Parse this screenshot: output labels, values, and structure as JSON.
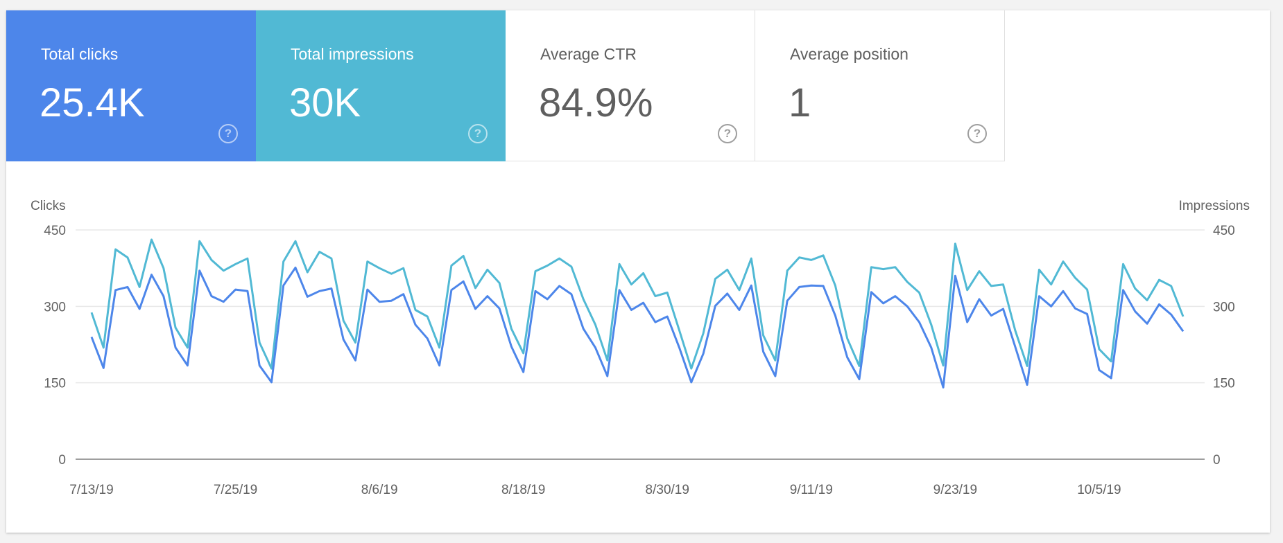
{
  "metrics": [
    {
      "label": "Total clicks",
      "value": "25.4K",
      "selected": true,
      "color": "#4d86ea"
    },
    {
      "label": "Total impressions",
      "value": "30K",
      "selected": true,
      "color": "#51b9d4"
    },
    {
      "label": "Average CTR",
      "value": "84.9%",
      "selected": false
    },
    {
      "label": "Average position",
      "value": "1",
      "selected": false
    }
  ],
  "help_icon": "question-circle-icon",
  "chart_data": {
    "type": "line",
    "left_axis_label": "Clicks",
    "right_axis_label": "Impressions",
    "ylim": [
      0,
      450
    ],
    "yticks": [
      "0",
      "150",
      "300",
      "450"
    ],
    "grid": true,
    "xtick_labels": [
      "7/13/19",
      "7/25/19",
      "8/6/19",
      "8/18/19",
      "8/30/19",
      "9/11/19",
      "9/23/19",
      "10/5/19"
    ],
    "x": [
      "7/13/19",
      "7/14/19",
      "7/15/19",
      "7/16/19",
      "7/17/19",
      "7/18/19",
      "7/19/19",
      "7/20/19",
      "7/21/19",
      "7/22/19",
      "7/23/19",
      "7/24/19",
      "7/25/19",
      "7/26/19",
      "7/27/19",
      "7/28/19",
      "7/29/19",
      "7/30/19",
      "7/31/19",
      "8/1/19",
      "8/2/19",
      "8/3/19",
      "8/4/19",
      "8/5/19",
      "8/6/19",
      "8/7/19",
      "8/8/19",
      "8/9/19",
      "8/10/19",
      "8/11/19",
      "8/12/19",
      "8/13/19",
      "8/14/19",
      "8/15/19",
      "8/16/19",
      "8/17/19",
      "8/18/19",
      "8/19/19",
      "8/20/19",
      "8/21/19",
      "8/22/19",
      "8/23/19",
      "8/24/19",
      "8/25/19",
      "8/26/19",
      "8/27/19",
      "8/28/19",
      "8/29/19",
      "8/30/19",
      "8/31/19",
      "9/1/19",
      "9/2/19",
      "9/3/19",
      "9/4/19",
      "9/5/19",
      "9/6/19",
      "9/7/19",
      "9/8/19",
      "9/9/19",
      "9/10/19",
      "9/11/19",
      "9/12/19",
      "9/13/19",
      "9/14/19",
      "9/15/19",
      "9/16/19",
      "9/17/19",
      "9/18/19",
      "9/19/19",
      "9/20/19",
      "9/21/19",
      "9/22/19",
      "9/23/19",
      "9/24/19",
      "9/25/19",
      "9/26/19",
      "9/27/19",
      "9/28/19",
      "9/29/19",
      "9/30/19",
      "10/1/19",
      "10/2/19",
      "10/3/19",
      "10/4/19",
      "10/5/19",
      "10/6/19",
      "10/7/19",
      "10/8/19",
      "10/9/19",
      "10/10/19",
      "10/11/19",
      "10/12/19"
    ],
    "series": [
      {
        "name": "Clicks",
        "color": "#4d86ea",
        "values": [
          240,
          179,
          332,
          338,
          295,
          362,
          320,
          219,
          184,
          370,
          320,
          309,
          333,
          330,
          184,
          151,
          341,
          376,
          319,
          330,
          335,
          235,
          194,
          333,
          309,
          311,
          324,
          264,
          237,
          184,
          332,
          349,
          295,
          320,
          296,
          221,
          171,
          330,
          314,
          340,
          324,
          256,
          219,
          163,
          332,
          293,
          307,
          269,
          280,
          219,
          151,
          207,
          301,
          325,
          293,
          341,
          211,
          163,
          311,
          338,
          341,
          340,
          282,
          200,
          157,
          328,
          306,
          320,
          300,
          269,
          219,
          141,
          360,
          269,
          314,
          282,
          295,
          221,
          146,
          320,
          300,
          330,
          296,
          285,
          175,
          159,
          332,
          290,
          266,
          304,
          284,
          251
        ]
      },
      {
        "name": "Impressions",
        "color": "#51b9d4",
        "values": [
          288,
          219,
          412,
          396,
          338,
          431,
          375,
          258,
          219,
          428,
          391,
          370,
          383,
          394,
          229,
          178,
          388,
          428,
          367,
          407,
          394,
          272,
          229,
          388,
          375,
          364,
          375,
          293,
          280,
          219,
          380,
          399,
          336,
          372,
          346,
          256,
          208,
          369,
          380,
          394,
          378,
          314,
          264,
          194,
          383,
          343,
          365,
          320,
          327,
          253,
          178,
          247,
          354,
          372,
          332,
          394,
          243,
          194,
          370,
          396,
          391,
          400,
          341,
          237,
          183,
          377,
          373,
          377,
          348,
          327,
          264,
          184,
          423,
          332,
          369,
          340,
          343,
          253,
          183,
          372,
          343,
          388,
          356,
          333,
          216,
          192,
          383,
          335,
          312,
          352,
          340,
          280
        ]
      }
    ]
  }
}
